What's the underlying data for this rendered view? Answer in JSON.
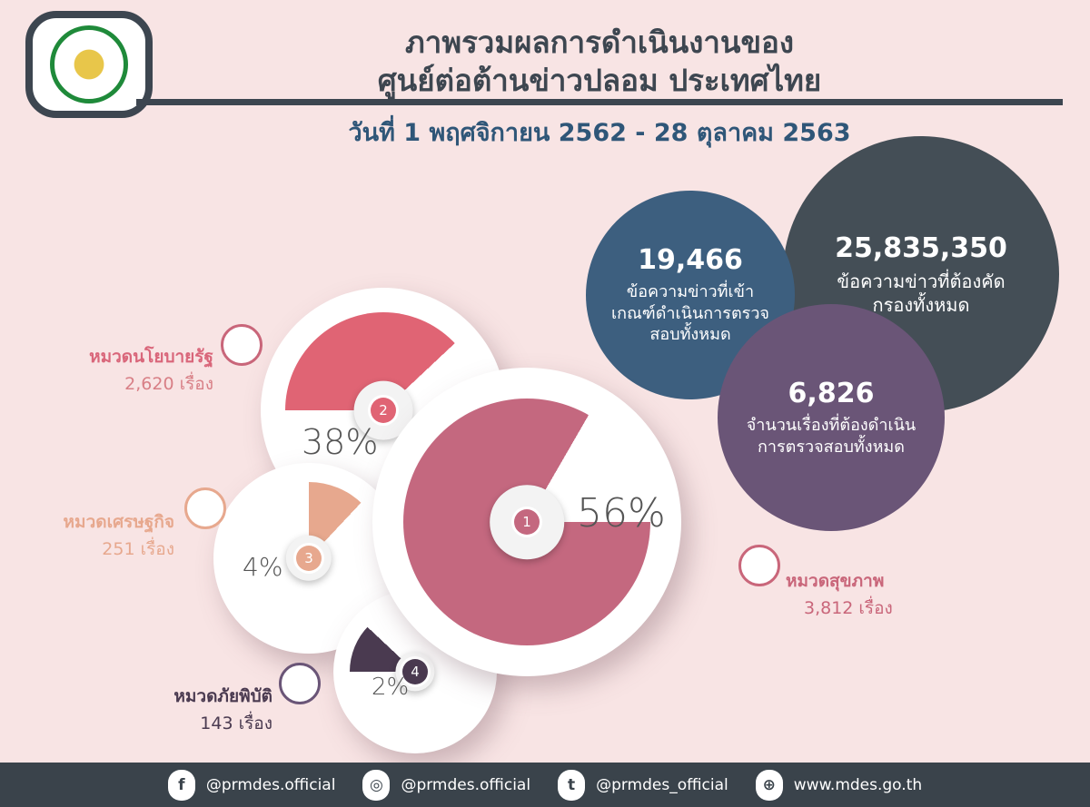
{
  "header": {
    "title_line1": "ภาพรวมผลการดำเนินงานของ",
    "title_line2": "ศูนย์ต่อต้านข่าวปลอม ประเทศไทย",
    "date_range": "วันที่ 1 พฤศจิกายน 2562 - 28 ตุลาคม 2563"
  },
  "stats": [
    {
      "value": "25,835,350",
      "label": "ข้อความข่าวที่ต้องคัดกรองทั้งหมด",
      "color": "#444e56"
    },
    {
      "value": "19,466",
      "label": "ข้อความข่าวที่เข้าเกณฑ์ดำเนินการตรวจสอบทั้งหมด",
      "color": "#3d5f7f"
    },
    {
      "value": "6,826",
      "label": "จำนวนเรื่องที่ต้องดำเนินการตรวจสอบทั้งหมด",
      "color": "#6a5577"
    }
  ],
  "chart_data": {
    "type": "pie",
    "title": "",
    "categories": [
      "หมวดสุขภาพ",
      "หมวดนโยบายรัฐ",
      "หมวดเศรษฐกิจ",
      "หมวดภัยพิบัติ"
    ],
    "ranks": [
      "1",
      "2",
      "3",
      "4"
    ],
    "values": [
      56,
      38,
      4,
      2
    ],
    "percent_labels": [
      "56%",
      "38%",
      "4%",
      "2%"
    ],
    "counts": [
      "3,812 เรื่อง",
      "2,620 เรื่อง",
      "251 เรื่อง",
      "143 เรื่อง"
    ],
    "colors": [
      "#c4687f",
      "#e06474",
      "#e7a88e",
      "#4a3a50"
    ]
  },
  "footer": {
    "facebook": "@prmdes.official",
    "instagram": "@prmdes.official",
    "twitter": "@prmdes_official",
    "website": "www.mdes.go.th"
  }
}
